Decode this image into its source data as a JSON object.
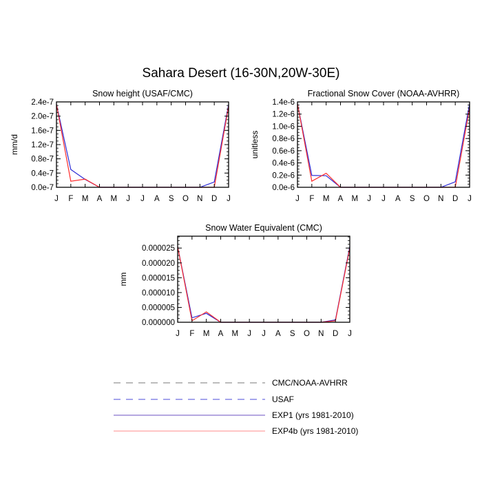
{
  "figure": {
    "title": "Sahara Desert (16-30N,20W-30E)"
  },
  "colors": {
    "exp1": "#2b2bd6",
    "exp4b": "#ff2a2a",
    "obs_cmc": "#777777",
    "obs_usaf": "#4a4ad8",
    "exp1_legend": "#6b4fc0",
    "exp4b_legend": "#ff8a8a",
    "axis": "#000000"
  },
  "legend": [
    {
      "label": "CMC/NOAA-AVHRR",
      "style": "dashed",
      "color_key": "obs_cmc"
    },
    {
      "label": "USAF",
      "style": "dashed",
      "color_key": "obs_usaf"
    },
    {
      "label": "EXP1 (yrs 1981-2010)",
      "style": "solid",
      "color_key": "exp1_legend"
    },
    {
      "label": "EXP4b (yrs 1981-2010)",
      "style": "solid",
      "color_key": "exp4b_legend"
    }
  ],
  "chart_data": [
    {
      "type": "line",
      "title": "Snow height (USAF/CMC)",
      "xlabel": "",
      "ylabel": "mm/d",
      "categories": [
        "J",
        "F",
        "M",
        "A",
        "M",
        "J",
        "J",
        "A",
        "S",
        "O",
        "N",
        "D",
        "J"
      ],
      "ylim": [
        0,
        2.4e-07
      ],
      "yticks": [
        0,
        4e-08,
        8e-08,
        1.2e-07,
        1.6e-07,
        2e-07,
        2.4e-07
      ],
      "ytick_labels": [
        "0.0e-7",
        "0.4e-7",
        "0.8e-7",
        "1.2e-7",
        "1.6e-7",
        "2.0e-7",
        "2.4e-7"
      ],
      "series": [
        {
          "name": "EXP1 (yrs 1981-2010)",
          "color_key": "exp1",
          "values": [
            2.33e-07,
            5e-08,
            2.2e-08,
            0,
            0,
            0,
            0,
            0,
            0,
            0,
            0,
            1.5e-08,
            2.33e-07
          ]
        },
        {
          "name": "EXP4b (yrs 1981-2010)",
          "color_key": "exp4b",
          "values": [
            2.33e-07,
            1.7e-08,
            2.3e-08,
            0,
            0,
            0,
            0,
            0,
            0,
            0,
            0,
            0,
            2.28e-07
          ]
        },
        {
          "name": "USAF",
          "color_key": "obs_usaf",
          "dashed": true,
          "values": [
            0,
            0,
            0,
            0,
            0,
            0,
            0,
            0,
            0,
            0,
            0,
            0,
            0
          ]
        }
      ]
    },
    {
      "type": "line",
      "title": "Fractional Snow Cover (NOAA-AVHRR)",
      "xlabel": "",
      "ylabel": "unitless",
      "categories": [
        "J",
        "F",
        "M",
        "A",
        "M",
        "J",
        "J",
        "A",
        "S",
        "O",
        "N",
        "D",
        "J"
      ],
      "ylim": [
        0,
        1.4e-06
      ],
      "yticks": [
        0,
        2e-07,
        4e-07,
        6e-07,
        8e-07,
        1e-06,
        1.2e-06,
        1.4e-06
      ],
      "ytick_labels": [
        "0.0e-6",
        "0.2e-6",
        "0.4e-6",
        "0.6e-6",
        "0.8e-6",
        "1.0e-6",
        "1.2e-6",
        "1.4e-6"
      ],
      "series": [
        {
          "name": "EXP1 (yrs 1981-2010)",
          "color_key": "exp1",
          "values": [
            1.37e-06,
            1.95e-07,
            1.9e-07,
            0,
            0,
            0,
            0,
            0,
            0,
            0,
            0,
            9e-08,
            1.37e-06
          ]
        },
        {
          "name": "EXP4b (yrs 1981-2010)",
          "color_key": "exp4b",
          "values": [
            1.37e-06,
            1e-07,
            2.3e-07,
            0,
            0,
            0,
            0,
            0,
            0,
            0,
            0,
            0,
            1.3e-06
          ]
        },
        {
          "name": "CMC/NOAA-AVHRR",
          "color_key": "obs_cmc",
          "dashed": true,
          "values": [
            0,
            0,
            0,
            0,
            0,
            0,
            0,
            0,
            0,
            0,
            0,
            0,
            0
          ]
        }
      ]
    },
    {
      "type": "line",
      "title": "Snow Water Equivalent (CMC)",
      "xlabel": "",
      "ylabel": "mm",
      "categories": [
        "J",
        "F",
        "M",
        "A",
        "M",
        "J",
        "J",
        "A",
        "S",
        "O",
        "N",
        "D",
        "J"
      ],
      "ylim": [
        0,
        2.9e-05
      ],
      "yticks": [
        0,
        5e-06,
        1e-05,
        1.5e-05,
        2e-05,
        2.5e-05
      ],
      "ytick_labels": [
        "0.000000",
        "0.000005",
        "0.000010",
        "0.000015",
        "0.000020",
        "0.000025"
      ],
      "series": [
        {
          "name": "EXP1 (yrs 1981-2010)",
          "color_key": "exp1",
          "values": [
            2.55e-05,
            1.5e-06,
            3e-06,
            0,
            0,
            0,
            0,
            0,
            0,
            0,
            0,
            8e-07,
            2.55e-05
          ]
        },
        {
          "name": "EXP4b (yrs 1981-2010)",
          "color_key": "exp4b",
          "values": [
            2.55e-05,
            5e-07,
            3.5e-06,
            0,
            0,
            0,
            0,
            0,
            0,
            0,
            0,
            5e-07,
            2.5e-05
          ]
        },
        {
          "name": "CMC/NOAA-AVHRR",
          "color_key": "obs_cmc",
          "dashed": true,
          "values": [
            0,
            0,
            0,
            0,
            0,
            0,
            0,
            0,
            0,
            0,
            0,
            0,
            0
          ]
        }
      ]
    }
  ]
}
